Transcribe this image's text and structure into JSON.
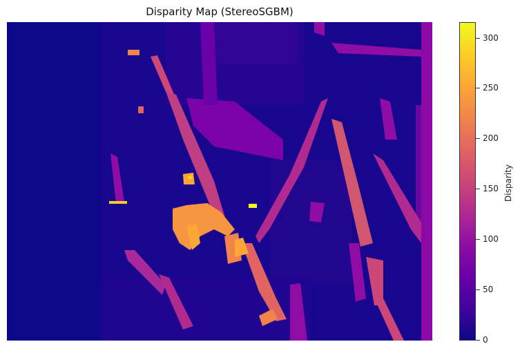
{
  "title": "Disparity Map (StereoSGBM)",
  "colormap": "plasma",
  "colorbar": {
    "label": "Disparity",
    "range": [
      0,
      314
    ],
    "ticks": [
      "0",
      "50",
      "100",
      "150",
      "200",
      "250",
      "300"
    ]
  },
  "colors": {
    "background_low": "#0d0887",
    "mid_purple": "#8b0aa5",
    "magenta": "#b12a90",
    "pink": "#cc4778",
    "orange": "#fca636",
    "yellow": "#f0f921"
  }
}
